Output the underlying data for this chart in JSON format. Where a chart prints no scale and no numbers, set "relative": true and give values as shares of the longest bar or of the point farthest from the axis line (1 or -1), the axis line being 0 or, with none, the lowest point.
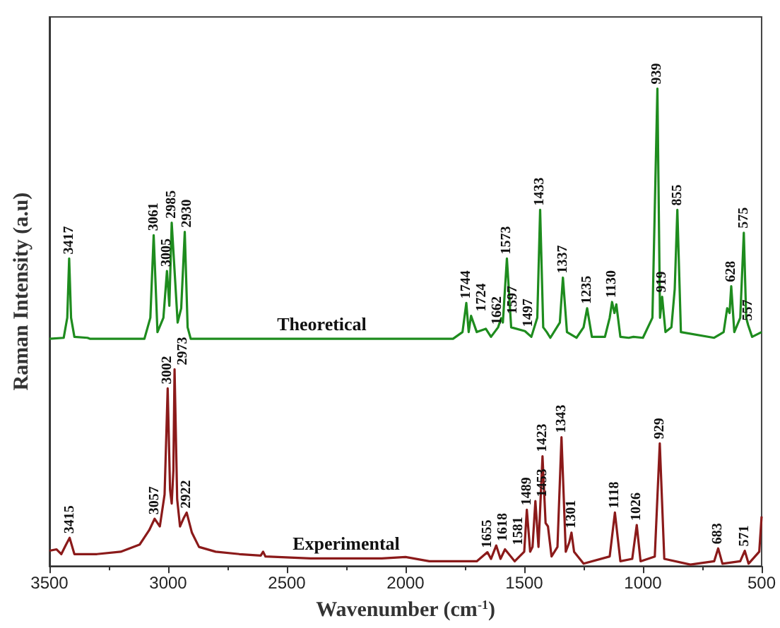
{
  "chart_data": {
    "type": "line",
    "relative": true,
    "xlabel": "Wavenumber (cm$^{-1}$)",
    "ylabel": "Raman Intensity (a.u)",
    "xlim": [
      3500,
      500
    ],
    "xticks": [
      3500,
      3000,
      2500,
      2000,
      1500,
      1000,
      500
    ],
    "legend": false,
    "grid": false,
    "marker": "none",
    "line_style": "solid",
    "series": [
      {
        "name": "Theoretical",
        "color": "#1e8c1e",
        "x": [
          3500,
          3440,
          3425,
          3417,
          3409,
          3395,
          3340,
          3330,
          3100,
          3075,
          3061,
          3045,
          3020,
          3005,
          2995,
          2985,
          2960,
          2945,
          2930,
          2918,
          2905,
          1800,
          1760,
          1744,
          1734,
          1724,
          1700,
          1662,
          1640,
          1610,
          1597,
          1590,
          1573,
          1555,
          1497,
          1470,
          1445,
          1433,
          1420,
          1405,
          1390,
          1350,
          1337,
          1320,
          1280,
          1250,
          1235,
          1215,
          1160,
          1140,
          1130,
          1120,
          1112,
          1095,
          1060,
          1040,
          1000,
          960,
          939,
          928,
          919,
          905,
          880,
          866,
          855,
          840,
          700,
          660,
          645,
          635,
          628,
          615,
          590,
          575,
          565,
          557,
          540,
          500
        ],
        "values": [
          0.476,
          0.478,
          0.52,
          0.644,
          0.52,
          0.48,
          0.478,
          0.476,
          0.476,
          0.52,
          0.693,
          0.49,
          0.52,
          0.618,
          0.545,
          0.719,
          0.51,
          0.54,
          0.7,
          0.5,
          0.476,
          0.476,
          0.49,
          0.551,
          0.49,
          0.524,
          0.49,
          0.497,
          0.48,
          0.5,
          0.519,
          0.51,
          0.644,
          0.5,
          0.492,
          0.48,
          0.52,
          0.746,
          0.5,
          0.49,
          0.478,
          0.51,
          0.604,
          0.49,
          0.478,
          0.5,
          0.54,
          0.48,
          0.48,
          0.52,
          0.553,
          0.53,
          0.548,
          0.48,
          0.478,
          0.48,
          0.478,
          0.52,
          1.0,
          0.52,
          0.564,
          0.49,
          0.5,
          0.58,
          0.746,
          0.49,
          0.478,
          0.49,
          0.54,
          0.53,
          0.586,
          0.49,
          0.52,
          0.698,
          0.52,
          0.505,
          0.48,
          0.49
        ]
      },
      {
        "name": "Experimental",
        "color": "#8b1a1a",
        "x": [
          3500,
          3470,
          3450,
          3430,
          3415,
          3395,
          3300,
          3200,
          3120,
          3080,
          3057,
          3035,
          3015,
          3002,
          2992,
          2985,
          2978,
          2973,
          2962,
          2950,
          2935,
          2922,
          2900,
          2870,
          2800,
          2700,
          2610,
          2600,
          2590,
          2400,
          2100,
          2000,
          1900,
          1700,
          1655,
          1640,
          1618,
          1600,
          1581,
          1540,
          1500,
          1489,
          1475,
          1465,
          1453,
          1440,
          1423,
          1410,
          1400,
          1385,
          1360,
          1343,
          1325,
          1310,
          1301,
          1290,
          1250,
          1140,
          1118,
          1095,
          1045,
          1026,
          1010,
          950,
          929,
          910,
          800,
          700,
          683,
          665,
          590,
          571,
          555,
          510,
          500
        ],
        "values": [
          0.032,
          0.035,
          0.025,
          0.045,
          0.059,
          0.025,
          0.025,
          0.03,
          0.045,
          0.075,
          0.099,
          0.083,
          0.15,
          0.372,
          0.16,
          0.131,
          0.2,
          0.412,
          0.14,
          0.083,
          0.1,
          0.112,
          0.07,
          0.04,
          0.03,
          0.025,
          0.022,
          0.03,
          0.02,
          0.016,
          0.016,
          0.019,
          0.01,
          0.01,
          0.029,
          0.015,
          0.043,
          0.015,
          0.035,
          0.01,
          0.03,
          0.118,
          0.03,
          0.04,
          0.136,
          0.04,
          0.23,
          0.09,
          0.083,
          0.02,
          0.04,
          0.27,
          0.03,
          0.05,
          0.07,
          0.03,
          0.005,
          0.02,
          0.112,
          0.01,
          0.015,
          0.086,
          0.01,
          0.02,
          0.257,
          0.015,
          0.003,
          0.01,
          0.037,
          0.005,
          0.01,
          0.032,
          0.005,
          0.03,
          0.104
        ]
      }
    ],
    "annotations": [
      {
        "text": "3417",
        "x": 3417,
        "y": 0.644
      },
      {
        "text": "3061",
        "x": 3061,
        "y": 0.693
      },
      {
        "text": "3005",
        "x": 3005,
        "y": 0.618
      },
      {
        "text": "2985",
        "x": 2985,
        "y": 0.719
      },
      {
        "text": "2930",
        "x": 2930,
        "y": 0.7
      },
      {
        "text": "1744",
        "x": 1744,
        "y": 0.551
      },
      {
        "text": "1724",
        "x": 1724,
        "y": 0.524
      },
      {
        "text": "1662",
        "x": 1662,
        "y": 0.497
      },
      {
        "text": "1597",
        "x": 1597,
        "y": 0.519
      },
      {
        "text": "1573",
        "x": 1573,
        "y": 0.644
      },
      {
        "text": "1497",
        "x": 1497,
        "y": 0.492
      },
      {
        "text": "1433",
        "x": 1433,
        "y": 0.746
      },
      {
        "text": "1337",
        "x": 1337,
        "y": 0.604
      },
      {
        "text": "1235",
        "x": 1235,
        "y": 0.54
      },
      {
        "text": "1130",
        "x": 1130,
        "y": 0.553
      },
      {
        "text": "939",
        "x": 939,
        "y": 1.0
      },
      {
        "text": "919",
        "x": 919,
        "y": 0.564
      },
      {
        "text": "855",
        "x": 855,
        "y": 0.746
      },
      {
        "text": "628",
        "x": 628,
        "y": 0.586
      },
      {
        "text": "575",
        "x": 575,
        "y": 0.698
      },
      {
        "text": "557",
        "x": 557,
        "y": 0.505
      },
      {
        "text": "3415",
        "x": 3415,
        "y": 0.059
      },
      {
        "text": "3057",
        "x": 3057,
        "y": 0.099
      },
      {
        "text": "3002",
        "x": 3002,
        "y": 0.372
      },
      {
        "text": "2973",
        "x": 2973,
        "y": 0.412
      },
      {
        "text": "2922",
        "x": 2922,
        "y": 0.112
      },
      {
        "text": "1655",
        "x": 1655,
        "y": 0.029
      },
      {
        "text": "1618",
        "x": 1618,
        "y": 0.043
      },
      {
        "text": "1581",
        "x": 1581,
        "y": 0.035
      },
      {
        "text": "1489",
        "x": 1489,
        "y": 0.118
      },
      {
        "text": "1453",
        "x": 1453,
        "y": 0.136
      },
      {
        "text": "1423",
        "x": 1423,
        "y": 0.23
      },
      {
        "text": "1343",
        "x": 1343,
        "y": 0.27
      },
      {
        "text": "1301",
        "x": 1301,
        "y": 0.07
      },
      {
        "text": "1118",
        "x": 1118,
        "y": 0.112
      },
      {
        "text": "1026",
        "x": 1026,
        "y": 0.086
      },
      {
        "text": "929",
        "x": 929,
        "y": 0.257
      },
      {
        "text": "683",
        "x": 683,
        "y": 0.037
      },
      {
        "text": "571",
        "x": 571,
        "y": 0.032
      }
    ]
  }
}
